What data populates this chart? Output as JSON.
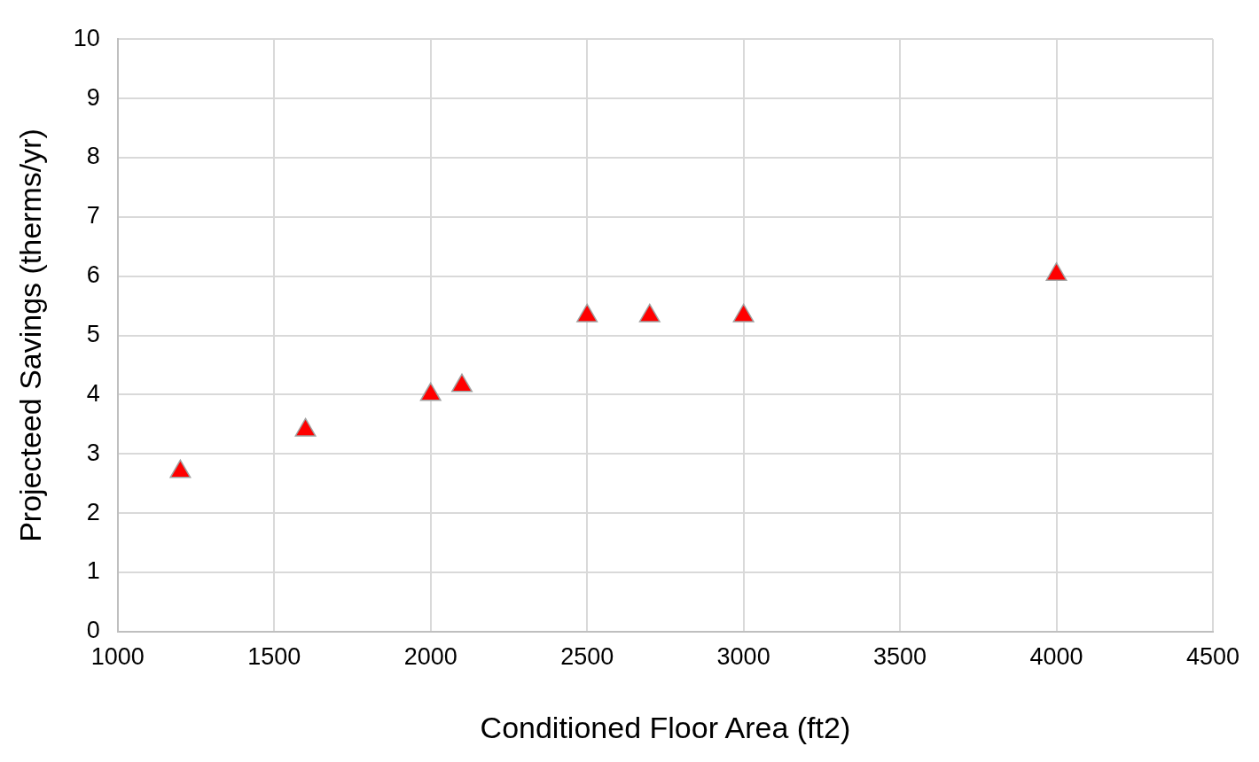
{
  "chart_data": {
    "type": "scatter",
    "xlabel": "Conditioned Floor Area (ft2)",
    "ylabel": "Projecteed Savings (therms/yr)",
    "x": [
      1200,
      1600,
      2000,
      2100,
      2500,
      2700,
      3000,
      4000
    ],
    "series": [
      {
        "color": "#ff0000",
        "values": [
          2.7,
          3.4,
          4.0,
          4.15,
          5.33,
          5.33,
          5.33,
          6.03
        ]
      }
    ],
    "xlim": [
      1000,
      4500
    ],
    "xticks": [
      1000,
      1500,
      2000,
      2500,
      3000,
      3500,
      4000,
      4500
    ],
    "ylim": [
      0,
      10
    ],
    "yticks": [
      0,
      1,
      2,
      3,
      4,
      5,
      6,
      7,
      8,
      9,
      10
    ],
    "grid": true,
    "legend": false,
    "marker": "triangle"
  }
}
